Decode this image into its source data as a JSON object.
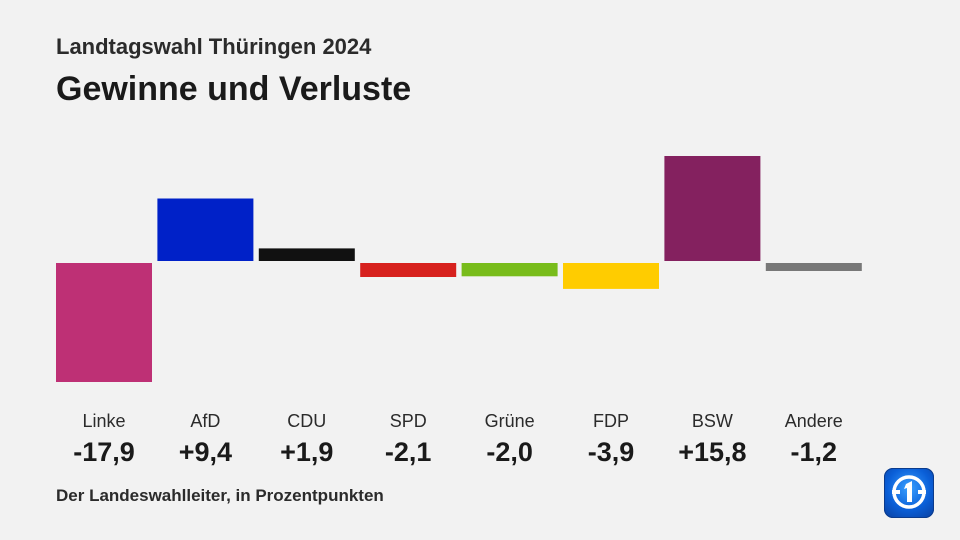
{
  "header": {
    "subtitle": "Landtagswahl Thüringen 2024",
    "title": "Gewinne und Verluste"
  },
  "footer": {
    "source": "Der Landeswahlleiter, in Prozentpunkten"
  },
  "logo": {
    "icon": "ard-das-erste-logo-icon"
  },
  "chart_data": {
    "type": "bar",
    "subtitle": "Landtagswahl Thüringen 2024",
    "title": "Gewinne und Verluste",
    "categories": [
      "Linke",
      "AfD",
      "CDU",
      "SPD",
      "Grüne",
      "FDP",
      "BSW",
      "Andere"
    ],
    "values": [
      -17.9,
      9.4,
      1.9,
      -2.1,
      -2.0,
      -3.9,
      15.8,
      -1.2
    ],
    "value_labels": [
      "-17,9",
      "+9,4",
      "+1,9",
      "-2,1",
      "-2,0",
      "-3,9",
      "+15,8",
      "-1,2"
    ],
    "colors": [
      "#be3075",
      "#0021c8",
      "#111111",
      "#d7211e",
      "#78bc1b",
      "#ffcc00",
      "#84215f",
      "#787878"
    ],
    "ylim": [
      -17.9,
      15.8
    ],
    "grid": false,
    "legend": "none",
    "source": "Der Landeswahlleiter, in Prozentpunkten"
  }
}
